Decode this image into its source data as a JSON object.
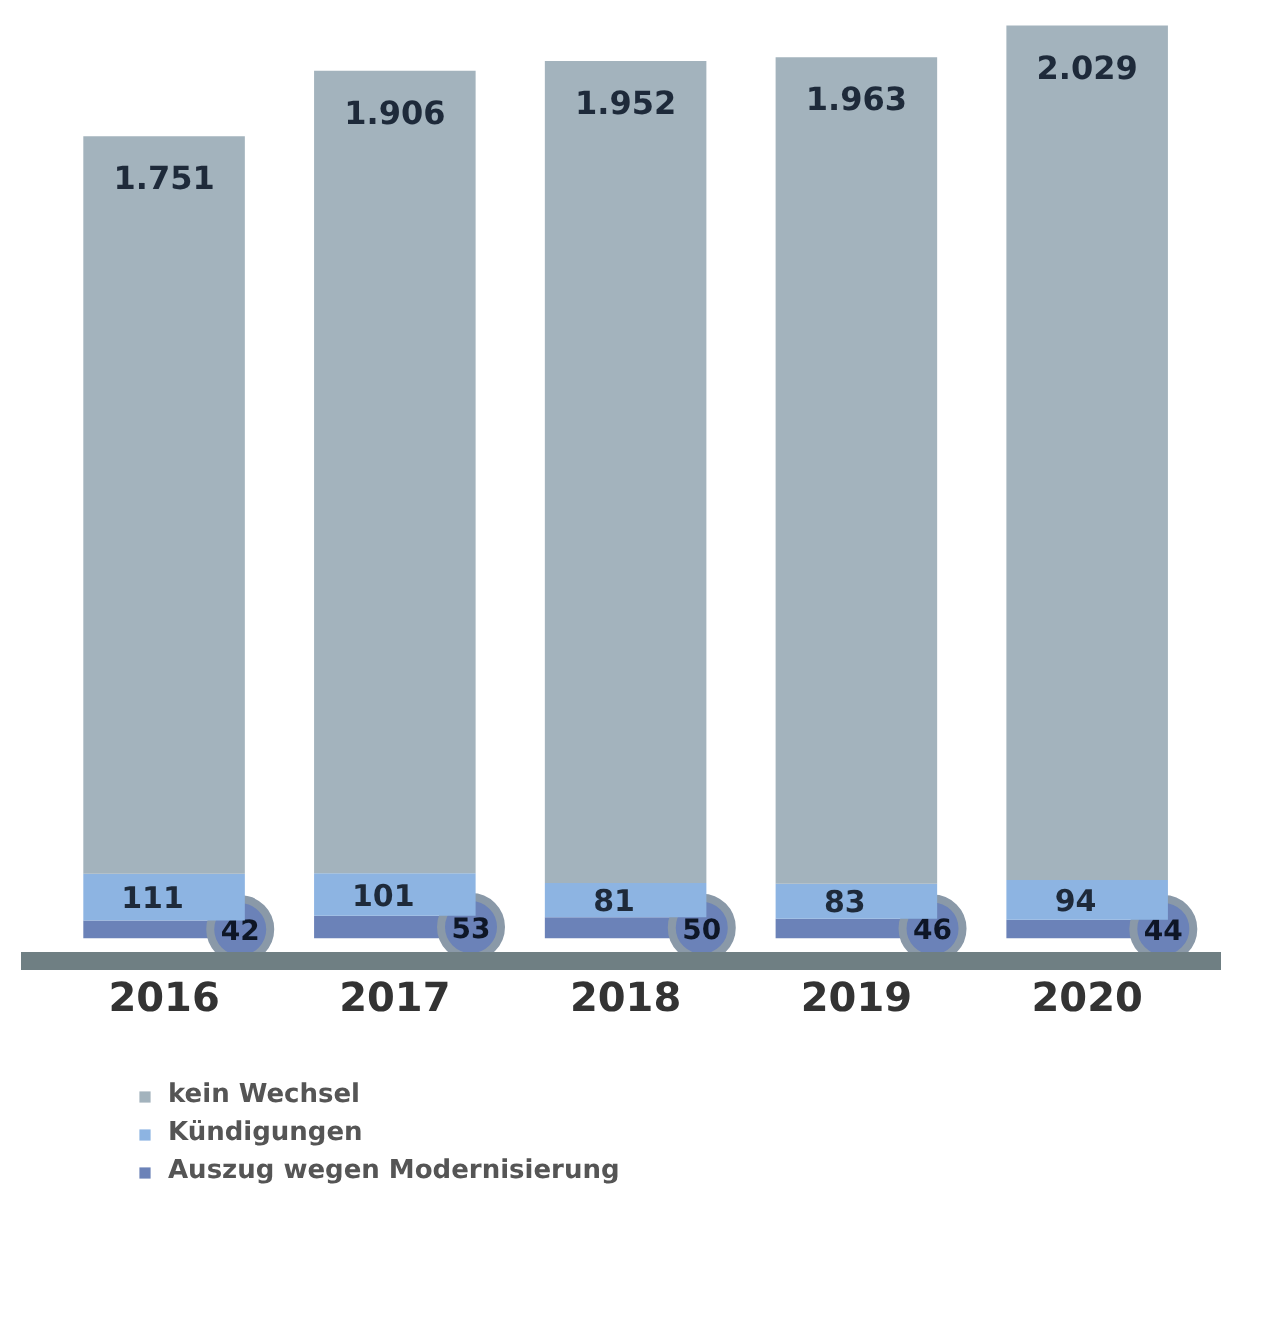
{
  "chart_data": {
    "type": "bar",
    "stacked": true,
    "categories": [
      "2016",
      "2017",
      "2018",
      "2019",
      "2020"
    ],
    "series": [
      {
        "name": "Auszug wegen Modernisierung",
        "color": "#6b82b8",
        "values": [
          42,
          53,
          50,
          46,
          44
        ],
        "value_labels": [
          "42",
          "53",
          "50",
          "46",
          "44"
        ]
      },
      {
        "name": "Kündigungen",
        "color": "#8db4e2",
        "values": [
          111,
          101,
          81,
          83,
          94
        ],
        "value_labels": [
          "111",
          "101",
          "81",
          "83",
          "94"
        ]
      },
      {
        "name": "kein Wechsel",
        "color": "#a3b3bd",
        "values": [
          1751,
          1906,
          1952,
          1963,
          2029
        ],
        "value_labels": [
          "1.751",
          "1.906",
          "1.952",
          "1.963",
          "2.029"
        ]
      }
    ],
    "legend": "bottom left"
  }
}
